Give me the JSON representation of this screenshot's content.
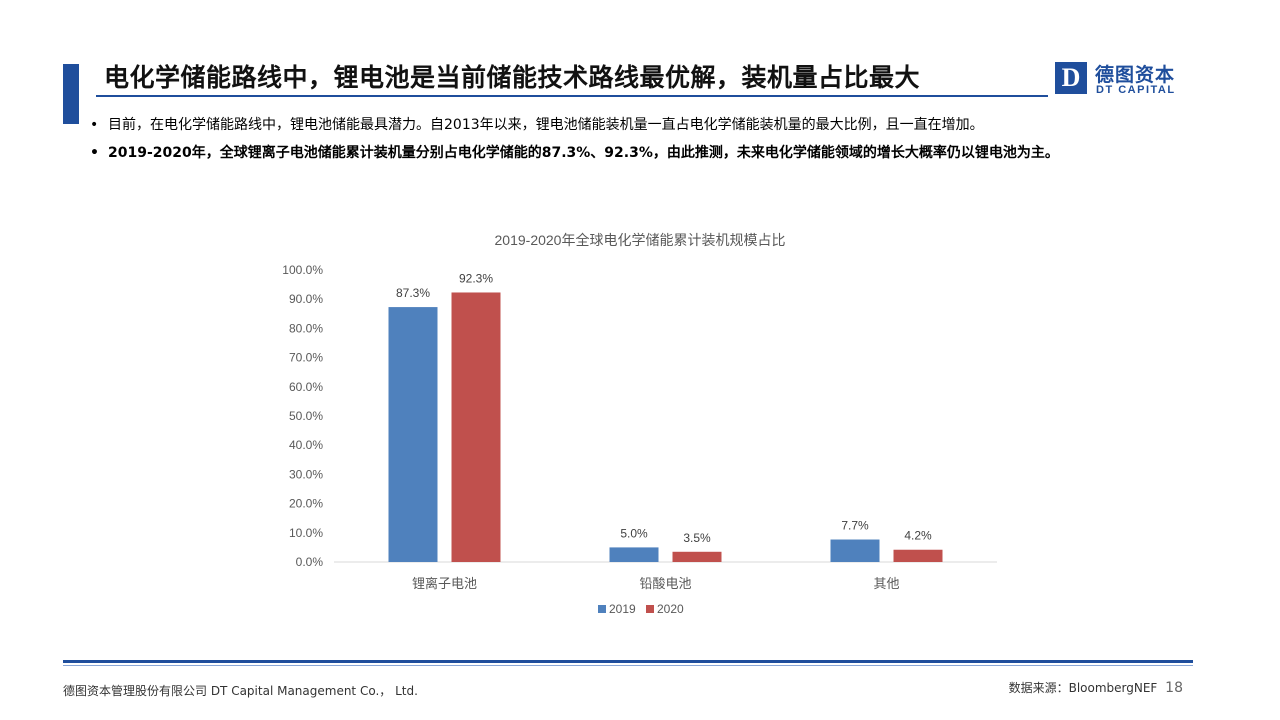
{
  "header": {
    "title": "电化学储能路线中，锂电池是当前储能技术路线最优解，装机量占比最大",
    "logo_cn": "德图资本",
    "logo_en": "DT CAPITAL",
    "logo_mark": "D"
  },
  "bullets": [
    "目前，在电化学储能路线中，锂电池储能最具潜力。自2013年以来，锂电池储能装机量一直占电化学储能装机量的最大比例，且一直在增加。",
    "2019-2020年，全球锂离子电池储能累计装机量分别占电化学储能的87.3%、92.3%，由此推测，未来电化学储能领域的增长大概率仍以锂电池为主。"
  ],
  "bullet_marker": "•",
  "chart_data": {
    "type": "bar",
    "title": "2019-2020年全球电化学储能累计装机规模占比",
    "categories": [
      "锂离子电池",
      "铅酸电池",
      "其他"
    ],
    "series": [
      {
        "name": "2019",
        "values": [
          87.3,
          5.0,
          7.7
        ],
        "labels": [
          "87.3%",
          "5.0%",
          "7.7%"
        ],
        "color": "#4f81bd"
      },
      {
        "name": "2020",
        "values": [
          92.3,
          3.5,
          4.2
        ],
        "labels": [
          "92.3%",
          "3.5%",
          "4.2%"
        ],
        "color": "#c0504d"
      }
    ],
    "ylim": [
      0,
      100
    ],
    "yticks": [
      "0.0%",
      "10.0%",
      "20.0%",
      "30.0%",
      "40.0%",
      "50.0%",
      "60.0%",
      "70.0%",
      "80.0%",
      "90.0%",
      "100.0%"
    ],
    "grid": false,
    "legend": "bottom"
  },
  "footer": {
    "company": "德图资本管理股份有限公司  DT Capital Management Co.， Ltd.",
    "source": "数据来源：BloombergNEF",
    "page": "18"
  },
  "colors": {
    "brand": "#1f4e9c",
    "series_2019": "#4f81bd",
    "series_2020": "#c0504d"
  }
}
